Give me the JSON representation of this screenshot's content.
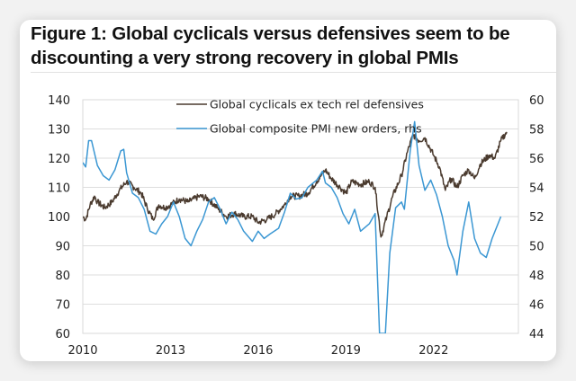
{
  "title": "Figure 1: Global cyclicals versus defensives seem to be discounting a very strong recovery in global PMIs",
  "title_lines": [
    "Figure 1: Global cyclicals versus defensives seem to be",
    "discounting a very strong recovery in global PMIs"
  ],
  "colors": {
    "cyclicals": "#4a3a2e",
    "pmi": "#3b97d3",
    "grid": "#dedede"
  },
  "chart_data": {
    "type": "line",
    "title": "Figure 1: Global cyclicals versus defensives seem to be discounting a very strong recovery in global PMIs",
    "xlabel": "",
    "ylabel": "",
    "ylabel_right": "",
    "xlim": [
      2010,
      2024.9
    ],
    "ylim": [
      60,
      140
    ],
    "ylim_right": [
      44,
      60
    ],
    "x_ticks": [
      "2010",
      "2013",
      "2016",
      "2019",
      "2022"
    ],
    "x_tick_values": [
      2010,
      2013,
      2016,
      2019,
      2022
    ],
    "y_ticks": [
      "60",
      "70",
      "80",
      "90",
      "100",
      "110",
      "120",
      "130",
      "140"
    ],
    "y_tick_values": [
      60,
      70,
      80,
      90,
      100,
      110,
      120,
      130,
      140
    ],
    "y_right_ticks": [
      "44",
      "46",
      "48",
      "50",
      "52",
      "54",
      "56",
      "58",
      "60"
    ],
    "y_right_tick_values": [
      44,
      46,
      48,
      50,
      52,
      54,
      56,
      58,
      60
    ],
    "grid": "horizontal",
    "legend_position": "top-center",
    "series": [
      {
        "name": "Global cyclicals ex tech rel defensives",
        "axis": "left",
        "x": [
          2010.0,
          2010.1,
          2010.25,
          2010.4,
          2010.5,
          2010.75,
          2011.0,
          2011.25,
          2011.5,
          2011.75,
          2012.0,
          2012.2,
          2012.4,
          2012.6,
          2012.8,
          2013.0,
          2013.3,
          2013.6,
          2014.0,
          2014.3,
          2014.6,
          2014.9,
          2015.2,
          2015.5,
          2015.8,
          2016.0,
          2016.3,
          2016.6,
          2016.9,
          2017.1,
          2017.4,
          2017.7,
          2018.0,
          2018.3,
          2018.5,
          2018.8,
          2019.0,
          2019.2,
          2019.5,
          2019.8,
          2020.0,
          2020.2,
          2020.4,
          2020.6,
          2020.9,
          2021.1,
          2021.3,
          2021.5,
          2021.7,
          2022.0,
          2022.2,
          2022.4,
          2022.6,
          2022.8,
          2023.0,
          2023.2,
          2023.4,
          2023.6,
          2023.9,
          2024.1,
          2024.3,
          2024.5
        ],
        "values": [
          100,
          99,
          104,
          107,
          105,
          103,
          105,
          109,
          112,
          110,
          108,
          103,
          99,
          104,
          103,
          104,
          106,
          105,
          107,
          106,
          103,
          100,
          101,
          100,
          100,
          98,
          99,
          101,
          104,
          107,
          107,
          108,
          112,
          116,
          113,
          110,
          108,
          112,
          111,
          112,
          110,
          93,
          100,
          107,
          114,
          122,
          128,
          126,
          127,
          121,
          117,
          109,
          113,
          110,
          114,
          116,
          113,
          118,
          121,
          120,
          126,
          129
        ]
      },
      {
        "name": "Global composite PMI new orders, rhs",
        "axis": "right",
        "x": [
          2010.0,
          2010.1,
          2010.2,
          2010.3,
          2010.5,
          2010.7,
          2010.9,
          2011.1,
          2011.3,
          2011.4,
          2011.5,
          2011.7,
          2011.9,
          2012.1,
          2012.3,
          2012.5,
          2012.7,
          2012.9,
          2013.1,
          2013.3,
          2013.5,
          2013.7,
          2013.9,
          2014.1,
          2014.3,
          2014.5,
          2014.7,
          2014.9,
          2015.1,
          2015.3,
          2015.5,
          2015.8,
          2016.0,
          2016.2,
          2016.4,
          2016.7,
          2016.9,
          2017.1,
          2017.3,
          2017.5,
          2017.7,
          2018.0,
          2018.2,
          2018.3,
          2018.5,
          2018.7,
          2018.9,
          2019.1,
          2019.3,
          2019.5,
          2019.8,
          2020.0,
          2020.15,
          2020.35,
          2020.5,
          2020.7,
          2020.9,
          2021.0,
          2021.2,
          2021.35,
          2021.5,
          2021.7,
          2021.9,
          2022.1,
          2022.3,
          2022.5,
          2022.7,
          2022.8,
          2023.0,
          2023.2,
          2023.4,
          2023.6,
          2023.8,
          2024.0,
          2024.2,
          2024.3
        ],
        "values": [
          55.7,
          55.4,
          57.2,
          57.2,
          55.5,
          54.8,
          54.5,
          55.2,
          56.5,
          56.6,
          55.0,
          53.6,
          53.3,
          52.5,
          51.0,
          50.8,
          51.5,
          52.0,
          53.0,
          52.0,
          50.5,
          50.0,
          51.0,
          51.8,
          53.0,
          53.3,
          52.5,
          51.5,
          52.3,
          51.8,
          51.0,
          50.3,
          51.0,
          50.5,
          50.8,
          51.2,
          52.3,
          53.6,
          53.2,
          53.3,
          54.0,
          54.5,
          55.1,
          54.3,
          54.0,
          53.3,
          52.2,
          51.5,
          52.5,
          51.0,
          51.5,
          52.2,
          44.0,
          44.0,
          49.5,
          52.6,
          53.0,
          52.5,
          56.5,
          58.5,
          55.5,
          53.8,
          54.5,
          53.5,
          52.0,
          50.0,
          49.0,
          48.0,
          51.0,
          53.0,
          50.5,
          49.5,
          49.2,
          50.5,
          51.5,
          52.0
        ]
      }
    ]
  }
}
